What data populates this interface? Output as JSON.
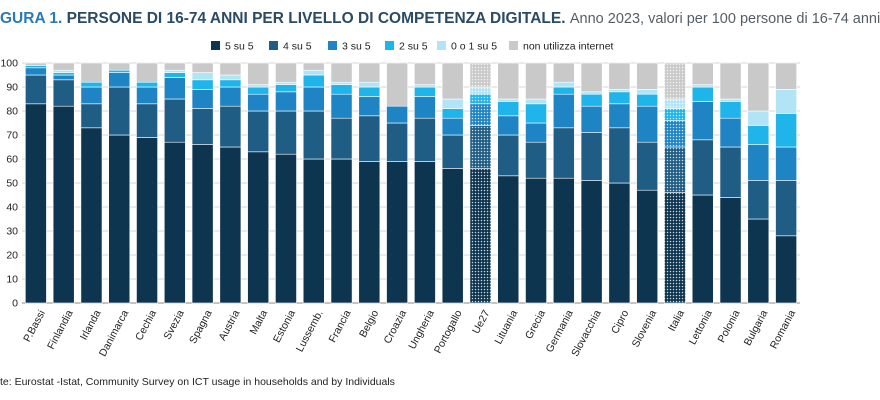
{
  "title": {
    "lead": "GURA 1.",
    "main": "PERSONE DI 16-74 ANNI PER LIVELLO DI COMPETENZA DIGITALE.",
    "sub": "Anno 2023, valori per 100 persone di 16-74 anni"
  },
  "source": "te: Eurostat -Istat, Community Survey on ICT usage in households and by Individuals",
  "colors": {
    "s5": "#0d3550",
    "s4": "#1f5d85",
    "s3": "#1e84c4",
    "s2": "#1fb5ea",
    "s01": "#b2e4f7",
    "none": "#c9c9c9",
    "grid": "#d6d6d6"
  },
  "chart_data": {
    "type": "bar",
    "stacked": true,
    "ylim": [
      0,
      100
    ],
    "yticks": [
      0,
      10,
      20,
      30,
      40,
      50,
      60,
      70,
      80,
      90,
      100
    ],
    "grid": true,
    "legend_position": "top",
    "highlighted_categories": [
      "Ue27",
      "Italia"
    ],
    "categories": [
      "P.Bassi",
      "Finlandia",
      "Irlanda",
      "Danimarca",
      "Cechia",
      "Svezia",
      "Spagna",
      "Austria",
      "Malta",
      "Estonia",
      "Lussemb.",
      "Francia",
      "Belgio",
      "Croazia",
      "Ungheria",
      "Portogallo",
      "Ue27",
      "Lituania",
      "Grecia",
      "Germania",
      "Slovacchia",
      "Cipro",
      "Slovenia",
      "Italia",
      "Lettonia",
      "Polonia",
      "Bulgaria",
      "Romania"
    ],
    "series": [
      {
        "name": "5 su 5",
        "color_key": "s5",
        "values": [
          83,
          82,
          73,
          70,
          69,
          67,
          66,
          65,
          63,
          62,
          60,
          60,
          59,
          59,
          59,
          56,
          56,
          53,
          52,
          52,
          51,
          50,
          47,
          46,
          45,
          44,
          35,
          28
        ]
      },
      {
        "name": "4 su 5",
        "color_key": "s4",
        "values": [
          12,
          11,
          10,
          20,
          14,
          18,
          15,
          17,
          17,
          18,
          20,
          17,
          19,
          16,
          18,
          14,
          18,
          17,
          15,
          21,
          20,
          23,
          20,
          19,
          23,
          21,
          16,
          23
        ]
      },
      {
        "name": "3 su 5",
        "color_key": "s3",
        "values": [
          3,
          2,
          7,
          6,
          7,
          9,
          8,
          8,
          7,
          8,
          10,
          10,
          8,
          7,
          9,
          7,
          9,
          8,
          8,
          14,
          11,
          10,
          15,
          11,
          16,
          12,
          15,
          14
        ]
      },
      {
        "name": "2 su 5",
        "color_key": "s2",
        "values": [
          1,
          1,
          2,
          1,
          2,
          2,
          4,
          3,
          3,
          3,
          5,
          4,
          4,
          0,
          4,
          4,
          4,
          6,
          8,
          3,
          5,
          5,
          5,
          5,
          6,
          7,
          8,
          14
        ]
      },
      {
        "name": "0  o 1 su 5",
        "color_key": "s01",
        "values": [
          0,
          1,
          0,
          0,
          0,
          1,
          3,
          2,
          1,
          1,
          2,
          1,
          2,
          0,
          1,
          4,
          3,
          1,
          2,
          2,
          1,
          1,
          2,
          4,
          1,
          1,
          6,
          10
        ]
      },
      {
        "name": "non utilizza internet",
        "color_key": "none",
        "values": [
          1,
          3,
          8,
          3,
          8,
          3,
          4,
          5,
          9,
          8,
          3,
          8,
          8,
          18,
          9,
          15,
          10,
          15,
          15,
          8,
          12,
          11,
          11,
          15,
          9,
          15,
          20,
          11
        ]
      }
    ]
  }
}
